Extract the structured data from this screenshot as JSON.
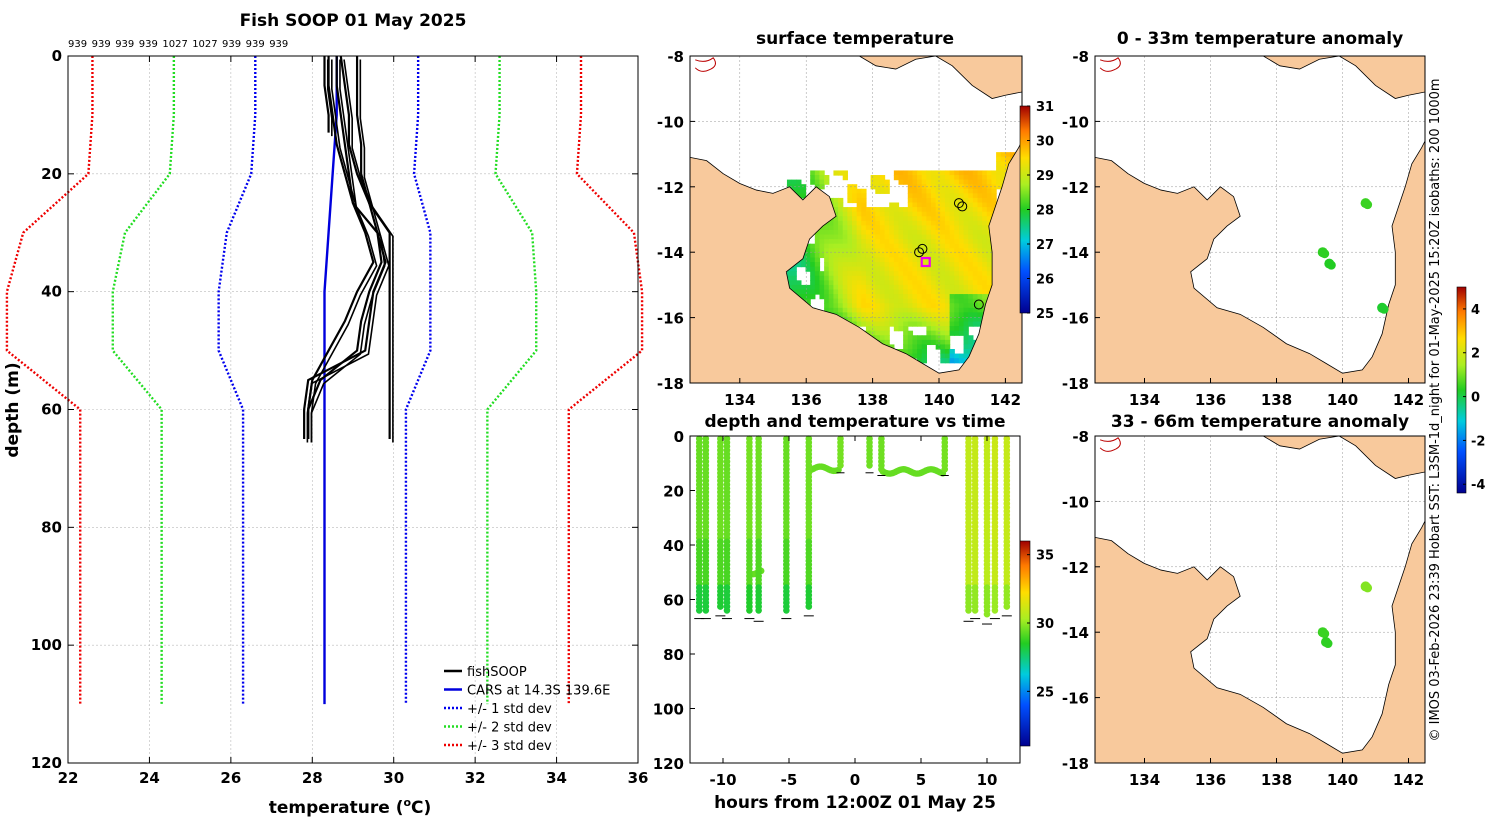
{
  "colors": {
    "land": "#f8c99c",
    "fish": "#000000",
    "cars": "#0000dd",
    "std1": "#0000ee",
    "std2": "#22dd22",
    "std3": "#ee0000",
    "ring": "#ee00ee"
  },
  "chart_data": [
    {
      "type": "line",
      "title": "Fish SOOP 01 May 2025",
      "header_ids": [
        "939",
        "939",
        "939",
        "939",
        "1027",
        "1027",
        "939",
        "939",
        "939"
      ],
      "xlabel": "temperature (",
      "xlabel_sup": "o",
      "xlabel_end": "C)",
      "ylabel": "depth (m)",
      "xlim": [
        22,
        36
      ],
      "ylim": [
        0,
        120
      ],
      "xticks": [
        "22",
        "24",
        "26",
        "28",
        "30",
        "32",
        "34",
        "36"
      ],
      "yticks": [
        "0",
        "20",
        "40",
        "60",
        "80",
        "100",
        "120"
      ],
      "legend": [
        "fishSOOP",
        "CARS at 14.3S 139.6E",
        "+/- 1 std dev",
        "+/- 2 std dev",
        "+/- 3 std dev"
      ],
      "depths": [
        0,
        10,
        20,
        30,
        40,
        50,
        60,
        110
      ],
      "cars_mean": [
        28.6,
        28.6,
        28.5,
        28.4,
        28.3,
        28.3,
        28.3,
        28.3
      ],
      "std_sigma": [
        2.0,
        2.0,
        2.0,
        2.5,
        2.6,
        2.6,
        2.0,
        2.0
      ],
      "fish_casts": [
        {
          "d": [
            0,
            5,
            10,
            15,
            20,
            25,
            30,
            35,
            40,
            45,
            50,
            55,
            60,
            65
          ],
          "t": [
            28.7,
            28.8,
            28.9,
            28.9,
            29.1,
            29.4,
            29.9,
            29.9,
            29.9,
            29.9,
            29.9,
            29.9,
            29.9,
            29.9
          ]
        },
        {
          "d": [
            0,
            5,
            10,
            15,
            20,
            25,
            30,
            35,
            40,
            45,
            50,
            55,
            60,
            65
          ],
          "t": [
            29.1,
            29.1,
            29.1,
            29.2,
            29.2,
            29.4,
            29.6,
            29.7,
            29.4,
            29.2,
            29.1,
            28.2,
            27.9,
            27.9
          ]
        },
        {
          "d": [
            0,
            5,
            10,
            15,
            20,
            25,
            30,
            35,
            40,
            45,
            50,
            55,
            60,
            65
          ],
          "t": [
            28.4,
            28.4,
            28.5,
            28.6,
            28.8,
            29.0,
            29.3,
            29.5,
            29.1,
            28.8,
            28.4,
            28.0,
            27.9,
            27.9
          ]
        },
        {
          "d": [
            0,
            5,
            10,
            15,
            20,
            25,
            30,
            35,
            40,
            45,
            50,
            55,
            60,
            65
          ],
          "t": [
            28.6,
            28.6,
            28.7,
            28.8,
            28.9,
            29.0,
            29.6,
            29.8,
            29.5,
            29.4,
            29.3,
            27.9,
            27.8,
            27.8
          ]
        },
        {
          "d": [
            0,
            5,
            10,
            13
          ],
          "t": [
            28.3,
            28.3,
            28.4,
            28.4
          ]
        }
      ]
    },
    {
      "type": "heatmap",
      "title": "surface temperature",
      "xlim": [
        132.5,
        142.5
      ],
      "ylim": [
        -18,
        -8
      ],
      "xticks": [
        "134",
        "136",
        "138",
        "140",
        "142"
      ],
      "yticks": [
        "-8",
        "-10",
        "-12",
        "-14",
        "-16",
        "-18"
      ],
      "colorbar": {
        "min": 25,
        "max": 31,
        "ticks": [
          "25",
          "26",
          "27",
          "28",
          "29",
          "30",
          "31"
        ]
      },
      "stations": [
        {
          "lon": 140.6,
          "lat": -12.5
        },
        {
          "lon": 140.7,
          "lat": -12.6
        },
        {
          "lon": 139.4,
          "lat": -14.0
        },
        {
          "lon": 139.5,
          "lat": -13.9
        },
        {
          "lon": 141.2,
          "lat": -15.6
        }
      ],
      "highlight": {
        "lon": 139.6,
        "lat": -14.3
      }
    },
    {
      "type": "heatmap",
      "title": "0 - 33m temperature anomaly",
      "xlim": [
        132.5,
        142.5
      ],
      "ylim": [
        -18,
        -8
      ],
      "xticks": [
        "134",
        "136",
        "138",
        "140",
        "142"
      ],
      "yticks": [
        "-8",
        "-10",
        "-12",
        "-14",
        "-16",
        "-18"
      ],
      "anomalies": [
        {
          "lon": 140.7,
          "lat": -12.5,
          "v": 0.5
        },
        {
          "lon": 139.4,
          "lat": -14.0,
          "v": 0.4
        },
        {
          "lon": 139.6,
          "lat": -14.35,
          "v": 0.3
        },
        {
          "lon": 141.2,
          "lat": -15.7,
          "v": 0.2
        }
      ]
    },
    {
      "type": "heatmap",
      "title": "33 - 66m temperature anomaly",
      "xlim": [
        132.5,
        142.5
      ],
      "ylim": [
        -18,
        -8
      ],
      "xticks": [
        "134",
        "136",
        "138",
        "140",
        "142"
      ],
      "yticks": [
        "-8",
        "-10",
        "-12",
        "-14",
        "-16",
        "-18"
      ],
      "anomalies": [
        {
          "lon": 140.7,
          "lat": -12.6,
          "v": 1.1
        },
        {
          "lon": 139.4,
          "lat": -14.0,
          "v": 0.5
        },
        {
          "lon": 139.5,
          "lat": -14.3,
          "v": 0.4
        }
      ]
    },
    {
      "type": "scatter",
      "title": "depth and temperature vs time",
      "xlabel": "hours from 12:00Z 01 May 25",
      "xlim": [
        -12.5,
        12.5
      ],
      "ylim": [
        0,
        120
      ],
      "xticks": [
        "-10",
        "-5",
        "0",
        "5",
        "10"
      ],
      "yticks": [
        "0",
        "20",
        "40",
        "60",
        "80",
        "100",
        "120"
      ],
      "colorbar": {
        "min": 21,
        "max": 36,
        "ticks": [
          "25",
          "30",
          "35"
        ]
      },
      "profiles": [
        {
          "t": -11.8,
          "bottom": 64,
          "top_temp": 29.4
        },
        {
          "t": -11.3,
          "bottom": 64,
          "top_temp": 29.4
        },
        {
          "t": -10.2,
          "bottom": 63,
          "top_temp": 29.5
        },
        {
          "t": -9.7,
          "bottom": 64,
          "top_temp": 29.4
        },
        {
          "t": -8.0,
          "bottom": 64,
          "top_temp": 29.6
        },
        {
          "t": -7.3,
          "bottom": 65,
          "top_temp": 29.5
        },
        {
          "t": -5.2,
          "bottom": 64,
          "top_temp": 29.4
        },
        {
          "t": -3.5,
          "bottom": 63,
          "top_temp": 29.5
        },
        {
          "t": -1.1,
          "bottom": 12,
          "top_temp": 29.6
        },
        {
          "t": 1.1,
          "bottom": 12,
          "top_temp": 29.5
        },
        {
          "t": 2.0,
          "bottom": 13,
          "top_temp": 29.5
        },
        {
          "t": 6.8,
          "bottom": 13,
          "top_temp": 29.6
        },
        {
          "t": 8.6,
          "bottom": 65,
          "top_temp": 30.8
        },
        {
          "t": 9.1,
          "bottom": 64,
          "top_temp": 30.9
        },
        {
          "t": 10.0,
          "bottom": 66,
          "top_temp": 30.8
        },
        {
          "t": 10.6,
          "bottom": 64,
          "top_temp": 31.0
        },
        {
          "t": 11.5,
          "bottom": 63,
          "top_temp": 30.9
        }
      ],
      "plateaus": [
        {
          "t0": -3.4,
          "t1": -1.2,
          "depth": 12
        },
        {
          "t0": 2.1,
          "t1": 6.7,
          "depth": 13
        },
        {
          "t0": -7.7,
          "t1": -7.0,
          "depth": 50
        }
      ]
    }
  ],
  "side_text": "© IMOS 03-Feb-2026 23:39 Hobart SST: L3SM-1d_night for 01-May-2025 15:20Z isobaths: 200  1000m"
}
